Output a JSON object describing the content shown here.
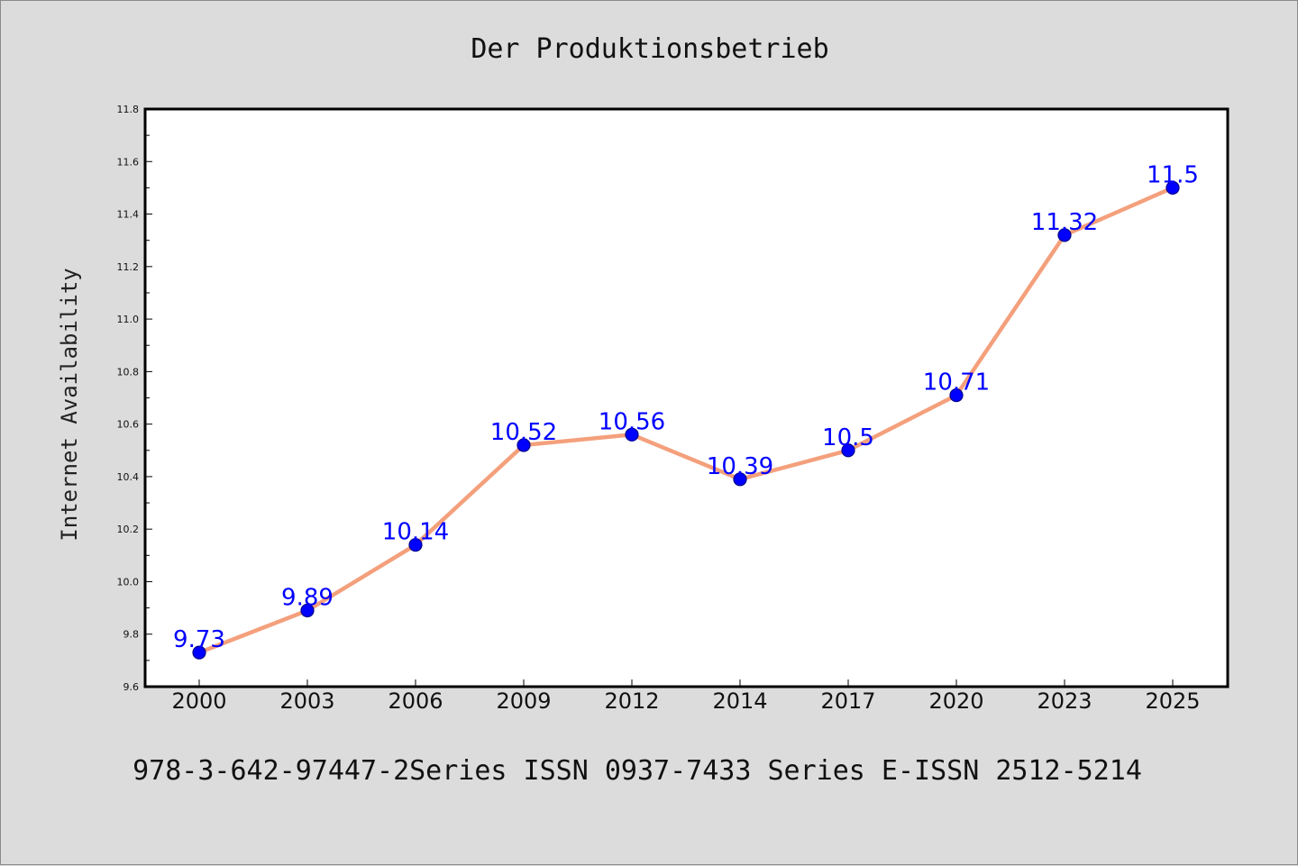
{
  "chart_data": {
    "type": "line",
    "title": "Der Produktionsbetrieb",
    "xlabel": "",
    "ylabel": "Internet Availability",
    "categories": [
      "2000",
      "2003",
      "2006",
      "2009",
      "2012",
      "2014",
      "2017",
      "2020",
      "2023",
      "2025"
    ],
    "series": [
      {
        "values": [
          9.73,
          9.89,
          10.14,
          10.52,
          10.56,
          10.39,
          10.5,
          10.71,
          11.32,
          11.5
        ],
        "labels": [
          "9.73",
          "9.89",
          "10.14",
          "10.52",
          "10.56",
          "10.39",
          "10.5",
          "10.71",
          "11.32",
          "11.5"
        ]
      }
    ],
    "ylim": [
      9.6,
      11.8
    ],
    "yticks": [
      "9.6",
      "9.8",
      "10.0",
      "10.2",
      "10.4",
      "10.6",
      "10.8",
      "11.0",
      "11.2",
      "11.4",
      "11.6",
      "11.8"
    ],
    "grid": false,
    "legend": "none",
    "footer": "978-3-642-97447-2Series ISSN 0937-7433 Series E-ISSN 2512-5214",
    "colors": {
      "line": "#f4a07c",
      "marker": "#0000ff",
      "marker_edge": "#00008b",
      "data_label": "#0000ff",
      "background": "#dcdcdc",
      "plot_area": "#ffffff"
    }
  }
}
